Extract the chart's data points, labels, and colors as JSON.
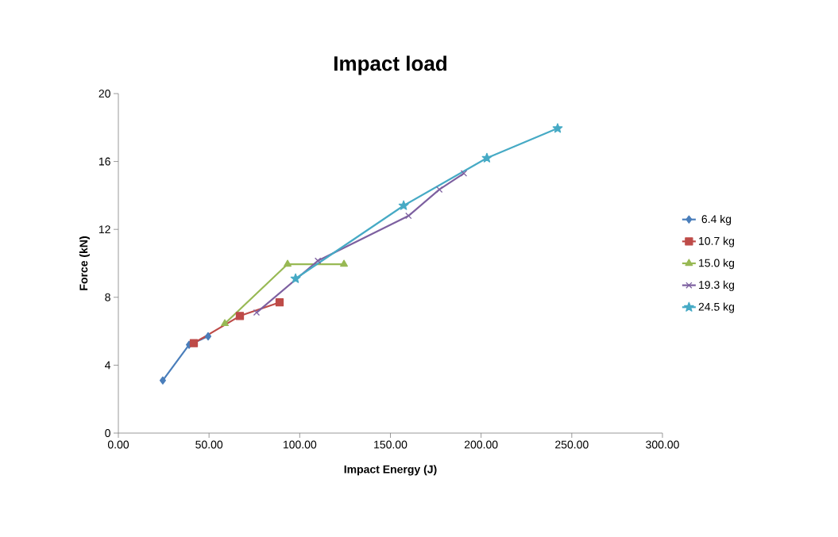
{
  "chart_data": {
    "type": "line",
    "title": "Impact load",
    "xlabel": "Impact Energy (J)",
    "ylabel": "Force (kN)",
    "xlim": [
      0,
      300
    ],
    "xticks": [
      {
        "value": 0,
        "label": "0.00"
      },
      {
        "value": 50,
        "label": "50.00"
      },
      {
        "value": 100,
        "label": "100.00"
      },
      {
        "value": 150,
        "label": "150.00"
      },
      {
        "value": 200,
        "label": "200.00"
      },
      {
        "value": 250,
        "label": "250.00"
      },
      {
        "value": 300,
        "label": "300.00"
      }
    ],
    "ylim": [
      0,
      20
    ],
    "yticks": [
      0,
      4,
      8,
      12,
      16,
      20
    ],
    "grid": false,
    "legend": "right",
    "line_style": "solid",
    "series": [
      {
        "name": "6.4 kg",
        "color": "#4a7ebb",
        "marker": "diamond",
        "x": [
          24.5,
          39,
          49.5
        ],
        "values": [
          3.1,
          5.2,
          5.7
        ]
      },
      {
        "name": "10.7 kg",
        "color": "#be4b48",
        "marker": "square",
        "x": [
          41.6,
          67,
          88.9
        ],
        "values": [
          5.3,
          6.9,
          7.7
        ]
      },
      {
        "name": "15.0 kg",
        "color": "#98b954",
        "marker": "triangle",
        "x": [
          58.7,
          93.3,
          124.4
        ],
        "values": [
          6.45,
          9.95,
          9.95
        ]
      },
      {
        "name": "19.3 kg",
        "color": "#7d60a0",
        "marker": "cross",
        "x": [
          76.2,
          110,
          160,
          177,
          190.5
        ],
        "values": [
          7.1,
          10.15,
          12.8,
          14.35,
          15.3
        ]
      },
      {
        "name": "24.5 kg",
        "color": "#46aac5",
        "marker": "star",
        "x": [
          97.7,
          157.3,
          203.2,
          242.2
        ],
        "values": [
          9.1,
          13.4,
          16.2,
          17.95
        ]
      }
    ]
  }
}
